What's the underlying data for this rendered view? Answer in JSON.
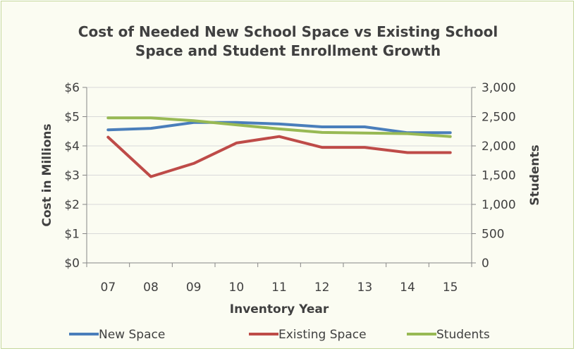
{
  "chart_data": {
    "type": "line",
    "title_lines": [
      "Cost of Needed New School Space vs Existing School",
      "Space and Student Enrollment Growth"
    ],
    "xlabel": "Inventory Year",
    "ylabel_left": "Cost in Millions",
    "ylabel_right": "Students",
    "categories": [
      "07",
      "08",
      "09",
      "10",
      "11",
      "12",
      "13",
      "14",
      "15"
    ],
    "yleft": {
      "min": 0,
      "max": 6,
      "ticks": [
        "$0",
        "$1",
        "$2",
        "$3",
        "$4",
        "$5",
        "$6"
      ]
    },
    "yright": {
      "min": 0,
      "max": 3000,
      "ticks": [
        "0",
        "500",
        "1,000",
        "1,500",
        "2,000",
        "2,500",
        "3,000"
      ]
    },
    "grid": "horizontal",
    "legend_position": "bottom",
    "series": [
      {
        "name": "New Space",
        "axis": "left",
        "color": "#4a7ebb",
        "values": [
          4.55,
          4.6,
          4.8,
          4.8,
          4.75,
          4.65,
          4.65,
          4.45,
          4.45
        ]
      },
      {
        "name": "Existing Space",
        "axis": "left",
        "color": "#be4b48",
        "values": [
          4.3,
          2.95,
          3.4,
          4.1,
          4.32,
          3.95,
          3.95,
          3.77,
          3.77
        ]
      },
      {
        "name": "Students",
        "axis": "right",
        "color": "#98b954",
        "values": [
          2480,
          2480,
          2430,
          2360,
          2290,
          2230,
          2220,
          2210,
          2160
        ]
      }
    ]
  }
}
